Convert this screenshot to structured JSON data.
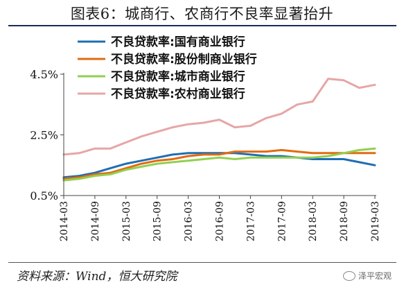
{
  "title": "图表6：城商行、农商行不良率显著抬升",
  "source": "资料来源：Wind，恒大研究院",
  "watermark": "泽平宏观",
  "chart_data": {
    "type": "line",
    "title": "图表6：城商行、农商行不良率显著抬升",
    "xlabel": "",
    "ylabel": "",
    "x": [
      "2014-03",
      "2014-06",
      "2014-09",
      "2014-12",
      "2015-03",
      "2015-06",
      "2015-09",
      "2015-12",
      "2016-03",
      "2016-06",
      "2016-09",
      "2016-12",
      "2017-03",
      "2017-06",
      "2017-09",
      "2017-12",
      "2018-03",
      "2018-06",
      "2018-09",
      "2018-12",
      "2019-03"
    ],
    "x_ticks": [
      "2014-03",
      "2014-09",
      "2015-03",
      "2015-09",
      "2016-03",
      "2016-09",
      "2017-03",
      "2017-09",
      "2018-03",
      "2018-09",
      "2019-03"
    ],
    "y_ticks": [
      "0.5%",
      "2.5%",
      "4.5%"
    ],
    "ylim": [
      0.5,
      4.5
    ],
    "grid": false,
    "legend_position": "top",
    "series": [
      {
        "name": "不良贷款率:国有商业银行",
        "color": "#1f6db5",
        "values": [
          1.1,
          1.15,
          1.25,
          1.4,
          1.55,
          1.65,
          1.75,
          1.85,
          1.9,
          1.9,
          1.9,
          1.9,
          1.85,
          1.8,
          1.8,
          1.75,
          1.7,
          1.7,
          1.7,
          1.6,
          1.5
        ]
      },
      {
        "name": "不良贷款率:股份制商业银行",
        "color": "#e26b10",
        "values": [
          1.05,
          1.1,
          1.2,
          1.25,
          1.4,
          1.55,
          1.65,
          1.7,
          1.8,
          1.85,
          1.85,
          1.95,
          1.95,
          1.95,
          2.0,
          1.95,
          1.9,
          1.9,
          1.9,
          1.9,
          1.9
        ]
      },
      {
        "name": "不良贷款率:城市商业银行",
        "color": "#92d050",
        "values": [
          1.0,
          1.05,
          1.15,
          1.2,
          1.35,
          1.45,
          1.55,
          1.6,
          1.65,
          1.7,
          1.75,
          1.7,
          1.75,
          1.75,
          1.75,
          1.75,
          1.75,
          1.8,
          1.9,
          2.0,
          2.05
        ]
      },
      {
        "name": "不良贷款率:农村商业银行",
        "color": "#e6a6a6",
        "values": [
          1.85,
          1.9,
          2.05,
          2.05,
          2.25,
          2.45,
          2.6,
          2.75,
          2.85,
          2.9,
          3.0,
          2.75,
          2.8,
          3.05,
          3.2,
          3.5,
          3.6,
          4.35,
          4.3,
          4.05,
          4.15
        ]
      }
    ]
  }
}
